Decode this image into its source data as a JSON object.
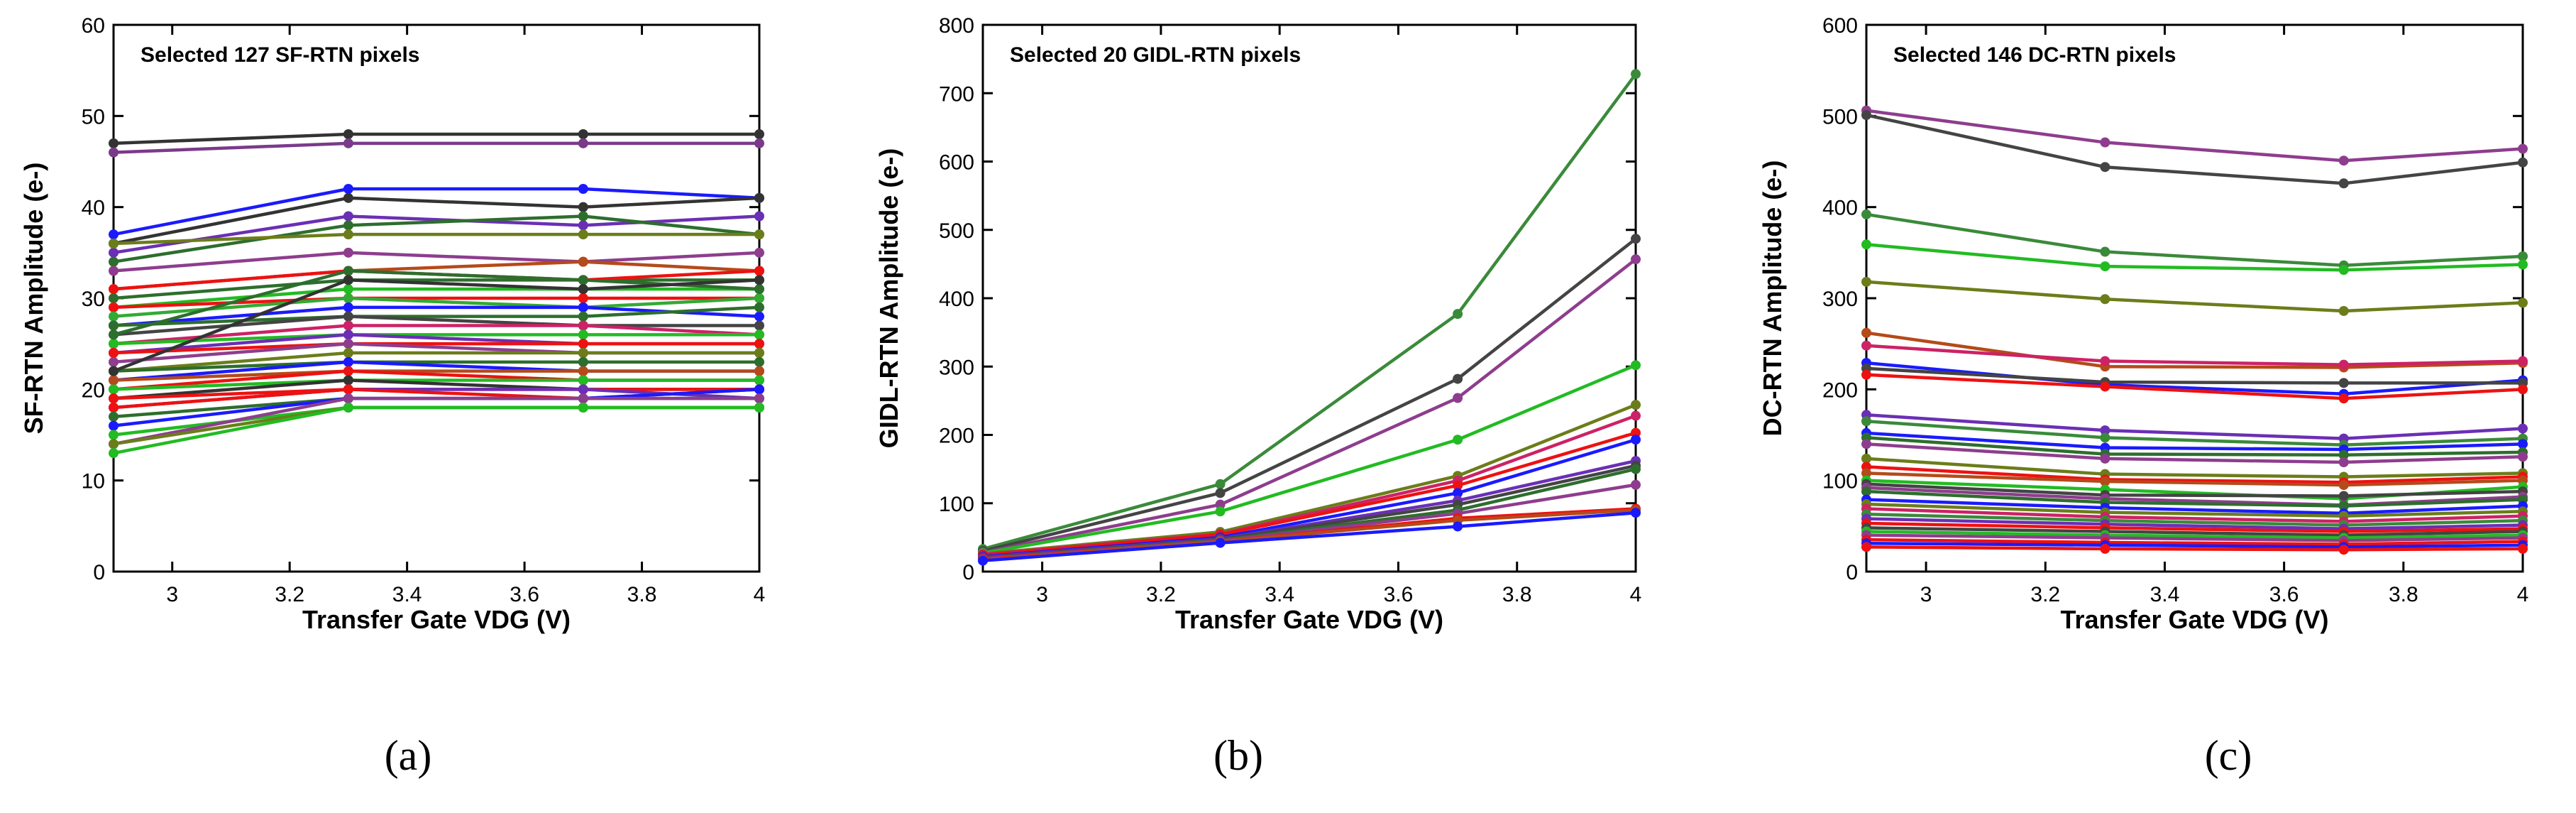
{
  "captions": [
    "(a)",
    "(b)",
    "(c)"
  ],
  "chart_data": [
    {
      "type": "line",
      "title": "Selected 127 SF-RTN pixels",
      "xlabel": "Transfer Gate VDG (V)",
      "ylabel": "SF-RTN Amplitude (e-)",
      "xlim": [
        2.9,
        4.0
      ],
      "ylim": [
        0,
        60
      ],
      "xticks": [
        3,
        3.2,
        3.4,
        3.6,
        3.8,
        4
      ],
      "xtick_labels": [
        "3",
        "3.2",
        "3.4",
        "3.6",
        "3.8",
        "4"
      ],
      "yticks": [
        0,
        10,
        20,
        30,
        40,
        50,
        60
      ],
      "ytick_labels": [
        "0",
        "10",
        "20",
        "30",
        "40",
        "50",
        "60"
      ],
      "x": [
        2.9,
        3.3,
        3.7,
        4.0
      ],
      "series": [
        {
          "color": "#333333",
          "values": [
            47,
            48,
            48,
            48
          ]
        },
        {
          "color": "#7a3a8a",
          "values": [
            46,
            47,
            47,
            47
          ]
        },
        {
          "color": "#1a1aff",
          "values": [
            37,
            42,
            42,
            41
          ]
        },
        {
          "color": "#333333",
          "values": [
            36,
            41,
            40,
            41
          ]
        },
        {
          "color": "#6b2fb5",
          "values": [
            35,
            39,
            38,
            39
          ]
        },
        {
          "color": "#2d6e2d",
          "values": [
            34,
            38,
            39,
            37
          ]
        },
        {
          "color": "#6b7d1a",
          "values": [
            36,
            37,
            37,
            37
          ]
        },
        {
          "color": "#8e3d8e",
          "values": [
            33,
            35,
            34,
            35
          ]
        },
        {
          "color": "#b54a1a",
          "values": [
            31,
            33,
            34,
            33
          ]
        },
        {
          "color": "#2d6e2d",
          "values": [
            30,
            32,
            32,
            32
          ]
        },
        {
          "color": "#22bb22",
          "values": [
            29,
            31,
            31,
            31
          ]
        },
        {
          "color": "#ee1111",
          "values": [
            29,
            30,
            30,
            30
          ]
        },
        {
          "color": "#33aa33",
          "values": [
            28,
            30,
            29,
            30
          ]
        },
        {
          "color": "#1a1aff",
          "values": [
            27,
            29,
            29,
            28
          ]
        },
        {
          "color": "#2d6e2d",
          "values": [
            27,
            28,
            28,
            29
          ]
        },
        {
          "color": "#444444",
          "values": [
            26,
            28,
            27,
            27
          ]
        },
        {
          "color": "#cc2266",
          "values": [
            25,
            27,
            27,
            26
          ]
        },
        {
          "color": "#22bb22",
          "values": [
            25,
            26,
            26,
            26
          ]
        },
        {
          "color": "#6b2fb5",
          "values": [
            24,
            26,
            25,
            25
          ]
        },
        {
          "color": "#ee1111",
          "values": [
            24,
            25,
            25,
            25
          ]
        },
        {
          "color": "#8e3d8e",
          "values": [
            23,
            25,
            24,
            24
          ]
        },
        {
          "color": "#6b7d1a",
          "values": [
            22,
            24,
            24,
            24
          ]
        },
        {
          "color": "#2d6e2d",
          "values": [
            22,
            23,
            23,
            23
          ]
        },
        {
          "color": "#1a1aff",
          "values": [
            21,
            23,
            22,
            22
          ]
        },
        {
          "color": "#b54a1a",
          "values": [
            21,
            22,
            22,
            22
          ]
        },
        {
          "color": "#ee1111",
          "values": [
            20,
            22,
            21,
            21
          ]
        },
        {
          "color": "#22bb22",
          "values": [
            20,
            21,
            21,
            21
          ]
        },
        {
          "color": "#333333",
          "values": [
            19,
            21,
            20,
            20
          ]
        },
        {
          "color": "#ee1111",
          "values": [
            19,
            20,
            20,
            20
          ]
        },
        {
          "color": "#6b2fb5",
          "values": [
            18,
            20,
            20,
            19
          ]
        },
        {
          "color": "#ee1111",
          "values": [
            18,
            20,
            19,
            20
          ]
        },
        {
          "color": "#2d6e2d",
          "values": [
            17,
            19,
            19,
            19
          ]
        },
        {
          "color": "#1a1aff",
          "values": [
            16,
            19,
            19,
            20
          ]
        },
        {
          "color": "#22bb22",
          "values": [
            15,
            18,
            18,
            18
          ]
        },
        {
          "color": "#8e3d8e",
          "values": [
            14,
            19,
            19,
            19
          ]
        },
        {
          "color": "#6b7d1a",
          "values": [
            14,
            18,
            18,
            18
          ]
        },
        {
          "color": "#22bb22",
          "values": [
            13,
            18,
            18,
            18
          ]
        },
        {
          "color": "#ee1111",
          "values": [
            31,
            33,
            32,
            33
          ]
        },
        {
          "color": "#2d6e2d",
          "values": [
            26,
            33,
            32,
            31
          ]
        },
        {
          "color": "#333333",
          "values": [
            22,
            32,
            31,
            32
          ]
        }
      ]
    },
    {
      "type": "line",
      "title": "Selected 20 GIDL-RTN pixels",
      "xlabel": "Transfer Gate VDG (V)",
      "ylabel": "GIDL-RTN Amplitude (e-)",
      "xlim": [
        2.9,
        4.0
      ],
      "ylim": [
        0,
        800
      ],
      "xticks": [
        3,
        3.2,
        3.4,
        3.6,
        3.8,
        4
      ],
      "xtick_labels": [
        "3",
        "3.2",
        "3.4",
        "3.6",
        "3.8",
        "4"
      ],
      "yticks": [
        0,
        100,
        200,
        300,
        400,
        500,
        600,
        700,
        800
      ],
      "ytick_labels": [
        "0",
        "100",
        "200",
        "300",
        "400",
        "500",
        "600",
        "700",
        "800"
      ],
      "x": [
        2.9,
        3.3,
        3.7,
        4.0
      ],
      "series": [
        {
          "color": "#3a8a3a",
          "values": [
            33,
            128,
            377,
            728
          ]
        },
        {
          "color": "#444444",
          "values": [
            30,
            115,
            282,
            487
          ]
        },
        {
          "color": "#8e3d8e",
          "values": [
            28,
            98,
            254,
            457
          ]
        },
        {
          "color": "#22bb22",
          "values": [
            27,
            88,
            193,
            302
          ]
        },
        {
          "color": "#6b7d1a",
          "values": [
            26,
            58,
            140,
            244
          ]
        },
        {
          "color": "#cc2266",
          "values": [
            25,
            55,
            133,
            228
          ]
        },
        {
          "color": "#ee1111",
          "values": [
            24,
            54,
            126,
            203
          ]
        },
        {
          "color": "#1a1aff",
          "values": [
            22,
            50,
            115,
            193
          ]
        },
        {
          "color": "#6b2fb5",
          "values": [
            21,
            48,
            104,
            162
          ]
        },
        {
          "color": "#444444",
          "values": [
            20,
            47,
            98,
            155
          ]
        },
        {
          "color": "#2d6e2d",
          "values": [
            19,
            46,
            90,
            150
          ]
        },
        {
          "color": "#8e3d8e",
          "values": [
            19,
            45,
            85,
            127
          ]
        },
        {
          "color": "#ee1111",
          "values": [
            18,
            44,
            78,
            92
          ]
        },
        {
          "color": "#b54a1a",
          "values": [
            17,
            44,
            75,
            90
          ]
        },
        {
          "color": "#1a1aff",
          "values": [
            16,
            42,
            66,
            86
          ]
        }
      ]
    },
    {
      "type": "line",
      "title": "Selected 146 DC-RTN pixels",
      "xlabel": "Transfer Gate VDG (V)",
      "ylabel": "DC-RTN Amplitude (e-)",
      "xlim": [
        2.9,
        4.0
      ],
      "ylim": [
        0,
        600
      ],
      "xticks": [
        3,
        3.2,
        3.4,
        3.6,
        3.8,
        4
      ],
      "xtick_labels": [
        "3",
        "3.2",
        "3.4",
        "3.6",
        "3.8",
        "4"
      ],
      "yticks": [
        0,
        100,
        200,
        300,
        400,
        500,
        600
      ],
      "ytick_labels": [
        "0",
        "100",
        "200",
        "300",
        "400",
        "500",
        "600"
      ],
      "x": [
        2.9,
        3.3,
        3.7,
        4.0
      ],
      "series": [
        {
          "color": "#8e3d8e",
          "values": [
            506,
            471,
            451,
            464
          ]
        },
        {
          "color": "#444444",
          "values": [
            501,
            444,
            426,
            449
          ]
        },
        {
          "color": "#3a8a3a",
          "values": [
            392,
            351,
            336,
            346
          ]
        },
        {
          "color": "#22bb22",
          "values": [
            359,
            335,
            331,
            337
          ]
        },
        {
          "color": "#6b7d1a",
          "values": [
            318,
            299,
            286,
            295
          ]
        },
        {
          "color": "#b54a1a",
          "values": [
            262,
            225,
            224,
            229
          ]
        },
        {
          "color": "#cc2266",
          "values": [
            248,
            231,
            227,
            231
          ]
        },
        {
          "color": "#1a1aff",
          "values": [
            229,
            205,
            195,
            210
          ]
        },
        {
          "color": "#444444",
          "values": [
            223,
            208,
            207,
            207
          ]
        },
        {
          "color": "#ee1111",
          "values": [
            216,
            203,
            190,
            200
          ]
        },
        {
          "color": "#6b2fb5",
          "values": [
            172,
            155,
            146,
            157
          ]
        },
        {
          "color": "#3a8a3a",
          "values": [
            165,
            147,
            139,
            146
          ]
        },
        {
          "color": "#1a1aff",
          "values": [
            152,
            136,
            134,
            140
          ]
        },
        {
          "color": "#2d6e2d",
          "values": [
            147,
            129,
            128,
            131
          ]
        },
        {
          "color": "#8e3d8e",
          "values": [
            140,
            124,
            120,
            126
          ]
        },
        {
          "color": "#6b7d1a",
          "values": [
            124,
            107,
            104,
            108
          ]
        },
        {
          "color": "#ee1111",
          "values": [
            115,
            101,
            98,
            104
          ]
        },
        {
          "color": "#b54a1a",
          "values": [
            108,
            99,
            95,
            100
          ]
        },
        {
          "color": "#22bb22",
          "values": [
            100,
            90,
            80,
            93
          ]
        },
        {
          "color": "#444444",
          "values": [
            96,
            84,
            83,
            88
          ]
        },
        {
          "color": "#8e3d8e",
          "values": [
            92,
            80,
            73,
            82
          ]
        },
        {
          "color": "#2d6e2d",
          "values": [
            88,
            76,
            72,
            79
          ]
        },
        {
          "color": "#1a1aff",
          "values": [
            79,
            70,
            64,
            72
          ]
        },
        {
          "color": "#6b7d1a",
          "values": [
            74,
            65,
            61,
            66
          ]
        },
        {
          "color": "#cc2266",
          "values": [
            69,
            60,
            55,
            61
          ]
        },
        {
          "color": "#3a8a3a",
          "values": [
            63,
            56,
            51,
            56
          ]
        },
        {
          "color": "#6b2fb5",
          "values": [
            58,
            52,
            47,
            51
          ]
        },
        {
          "color": "#ee1111",
          "values": [
            53,
            48,
            44,
            47
          ]
        },
        {
          "color": "#444444",
          "values": [
            48,
            44,
            40,
            44
          ]
        },
        {
          "color": "#22bb22",
          "values": [
            44,
            40,
            37,
            40
          ]
        },
        {
          "color": "#8e3d8e",
          "values": [
            40,
            37,
            34,
            37
          ]
        },
        {
          "color": "#ee1111",
          "values": [
            35,
            32,
            30,
            33
          ]
        },
        {
          "color": "#1a1aff",
          "values": [
            31,
            29,
            27,
            29
          ]
        },
        {
          "color": "#ee1111",
          "values": [
            27,
            25,
            24,
            25
          ]
        }
      ]
    }
  ]
}
